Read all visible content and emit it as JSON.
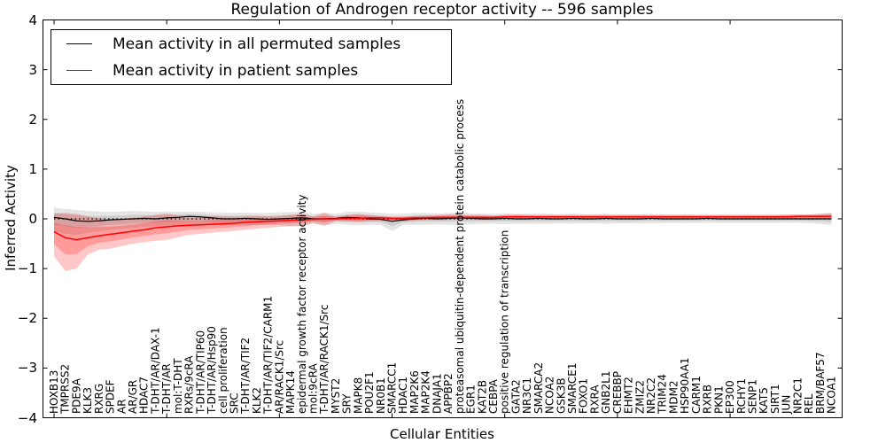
{
  "figure": {
    "title": "Regulation of Androgen receptor activity -- 596 samples",
    "xlabel": "Cellular Entities",
    "ylabel": "Inferred Activity"
  },
  "legend": {
    "entries": [
      {
        "label": "Mean activity in all permuted samples",
        "color": "#000000"
      },
      {
        "label": "Mean activity in patient samples",
        "color": "#ff0000"
      }
    ]
  },
  "chart_data": {
    "type": "line",
    "title": "Regulation of Androgen receptor activity -- 596 samples",
    "xlabel": "Cellular Entities",
    "ylabel": "Inferred Activity",
    "ylim": [
      -4,
      4
    ],
    "yticks": [
      4,
      3,
      2,
      1,
      0,
      -1,
      -2,
      -3,
      -4
    ],
    "xticks_major_every": 10,
    "grid": false,
    "zero_line": true,
    "legend_position": "upper left",
    "categories": [
      "HOXB13",
      "TMPRSS2",
      "PDE9A",
      "KLK3",
      "RXRG",
      "SPDEF",
      "AR",
      "AR/GR",
      "HDAC7",
      "T-DHT/AR/DAX-1",
      "T-DHT/AR",
      "mol:T-DHT",
      "RXRs/9cRA",
      "T-DHT/AR/TIP60",
      "T-DHT/AR/Hsp90",
      "cell proliferation",
      "SRC",
      "T-DHT/AR/TIF2",
      "KLK2",
      "T-DHT/AR/TIF2/CARM1",
      "AR/RACK1/Src",
      "MAPK14",
      "epidermal growth factor receptor activity",
      "mol:9cRA",
      "T-DHT/AR/RACK1/Src",
      "MYST2",
      "SRY",
      "MAPK8",
      "POU2F1",
      "NR0B1",
      "SMARCC1",
      "HDAC1",
      "MAP2K6",
      "MAP2K4",
      "DNAJA1",
      "APPBP2",
      "proteasomal ubiquitin-dependent protein catabolic process",
      "EGR1",
      "KAT2B",
      "CEBPA",
      "positive regulation of transcription",
      "GATA2",
      "NR3C1",
      "SMARCA2",
      "NCOA2",
      "GSK3B",
      "SMARCE1",
      "FOXO1",
      "RXRA",
      "GNB2L1",
      "CREBBP",
      "EHMT2",
      "ZMIZ2",
      "NR2C2",
      "TRIM24",
      "MDM2",
      "HSP90AA1",
      "CARM1",
      "RXRB",
      "PKN1",
      "EP300",
      "RCHY1",
      "SENP1",
      "KAT5",
      "SIRT1",
      "JUN",
      "NR2C1",
      "REL",
      "BRM/BAF57",
      "NCOA1"
    ],
    "series": [
      {
        "name": "Mean activity in all permuted samples",
        "color": "#000000",
        "band_fill": "rgba(0,0,0,0.10)",
        "values": [
          0.03,
          0.0,
          -0.04,
          -0.05,
          -0.04,
          -0.02,
          -0.01,
          0.0,
          0.01,
          0.0,
          0.02,
          0.03,
          0.05,
          0.04,
          0.02,
          0.0,
          0.0,
          0.01,
          0.0,
          -0.01,
          0.0,
          0.01,
          0.02,
          0.0,
          0.0,
          0.01,
          0.03,
          0.02,
          0.0,
          -0.01,
          -0.05,
          -0.02,
          0.0,
          0.01,
          0.0,
          0.01,
          0.02,
          0.01,
          0.0,
          0.0,
          0.01,
          0.0,
          0.0,
          0.01,
          0.0,
          0.0,
          0.01,
          0.0,
          0.0,
          0.01,
          0.0,
          0.0,
          0.0,
          0.01,
          0.0,
          0.0,
          0.0,
          0.0,
          0.01,
          0.0,
          0.0,
          0.0,
          0.0,
          0.0,
          0.0,
          0.0,
          0.0,
          0.0,
          0.0,
          0.0
        ],
        "band_upper": [
          0.22,
          0.2,
          0.18,
          0.16,
          0.15,
          0.14,
          0.15,
          0.16,
          0.15,
          0.14,
          0.15,
          0.14,
          0.15,
          0.14,
          0.13,
          0.13,
          0.12,
          0.13,
          0.12,
          0.12,
          0.13,
          0.14,
          0.14,
          0.1,
          0.13,
          0.1,
          0.14,
          0.15,
          0.13,
          0.12,
          0.1,
          0.1,
          0.12,
          0.12,
          0.11,
          0.12,
          0.13,
          0.11,
          0.1,
          0.1,
          0.11,
          0.1,
          0.1,
          0.1,
          0.1,
          0.09,
          0.1,
          0.09,
          0.09,
          0.1,
          0.09,
          0.09,
          0.09,
          0.09,
          0.09,
          0.08,
          0.09,
          0.08,
          0.08,
          0.08,
          0.08,
          0.08,
          0.08,
          0.08,
          0.08,
          0.08,
          0.08,
          0.09,
          0.1,
          0.13
        ],
        "band_lower": [
          -0.25,
          -0.3,
          -0.32,
          -0.28,
          -0.25,
          -0.22,
          -0.2,
          -0.18,
          -0.16,
          -0.15,
          -0.15,
          -0.14,
          -0.13,
          -0.14,
          -0.13,
          -0.13,
          -0.12,
          -0.13,
          -0.12,
          -0.12,
          -0.13,
          -0.14,
          -0.14,
          -0.1,
          -0.13,
          -0.1,
          -0.12,
          -0.13,
          -0.12,
          -0.12,
          -0.25,
          -0.12,
          -0.12,
          -0.12,
          -0.11,
          -0.12,
          -0.13,
          -0.11,
          -0.1,
          -0.1,
          -0.11,
          -0.1,
          -0.1,
          -0.1,
          -0.1,
          -0.09,
          -0.1,
          -0.09,
          -0.09,
          -0.1,
          -0.09,
          -0.09,
          -0.09,
          -0.09,
          -0.09,
          -0.08,
          -0.09,
          -0.08,
          -0.08,
          -0.08,
          -0.08,
          -0.08,
          -0.08,
          -0.08,
          -0.08,
          -0.08,
          -0.08,
          -0.09,
          -0.1,
          -0.13
        ]
      },
      {
        "name": "Mean activity in patient samples",
        "color": "#ff0000",
        "band_fill": "rgba(255,0,0,0.22)",
        "values": [
          -0.26,
          -0.38,
          -0.42,
          -0.38,
          -0.34,
          -0.31,
          -0.28,
          -0.25,
          -0.22,
          -0.18,
          -0.16,
          -0.14,
          -0.13,
          -0.12,
          -0.11,
          -0.1,
          -0.09,
          -0.07,
          -0.06,
          -0.05,
          -0.04,
          -0.03,
          -0.02,
          -0.01,
          0.0,
          0.0,
          0.01,
          0.01,
          0.02,
          0.02,
          0.01,
          0.01,
          0.02,
          0.02,
          0.03,
          0.03,
          0.03,
          0.03,
          0.03,
          0.03,
          0.04,
          0.04,
          0.04,
          0.04,
          0.04,
          0.04,
          0.04,
          0.04,
          0.04,
          0.04,
          0.04,
          0.04,
          0.04,
          0.04,
          0.04,
          0.04,
          0.04,
          0.04,
          0.04,
          0.04,
          0.04,
          0.04,
          0.04,
          0.04,
          0.04,
          0.04,
          0.05,
          0.05,
          0.05,
          0.05
        ],
        "band_upper": [
          0.1,
          0.12,
          0.1,
          0.05,
          0.01,
          -0.01,
          0.0,
          0.02,
          0.05,
          0.08,
          0.11,
          0.07,
          0.05,
          0.04,
          0.05,
          0.05,
          0.04,
          0.05,
          0.06,
          0.05,
          0.06,
          0.08,
          0.11,
          0.05,
          0.12,
          0.04,
          0.08,
          0.1,
          0.08,
          0.06,
          0.05,
          0.05,
          0.06,
          0.07,
          0.08,
          0.09,
          0.08,
          0.08,
          0.08,
          0.07,
          0.08,
          0.09,
          0.08,
          0.08,
          0.08,
          0.08,
          0.08,
          0.08,
          0.08,
          0.08,
          0.08,
          0.08,
          0.08,
          0.08,
          0.08,
          0.08,
          0.08,
          0.08,
          0.08,
          0.08,
          0.08,
          0.08,
          0.08,
          0.08,
          0.08,
          0.09,
          0.09,
          0.09,
          0.1,
          0.11
        ],
        "band_lower": [
          -0.75,
          -1.05,
          -1.0,
          -0.72,
          -0.62,
          -0.6,
          -0.55,
          -0.5,
          -0.47,
          -0.44,
          -0.42,
          -0.37,
          -0.32,
          -0.3,
          -0.28,
          -0.26,
          -0.24,
          -0.22,
          -0.2,
          -0.18,
          -0.16,
          -0.15,
          -0.14,
          -0.08,
          -0.14,
          -0.05,
          -0.06,
          -0.07,
          -0.05,
          -0.04,
          -0.04,
          -0.05,
          -0.03,
          -0.02,
          -0.02,
          -0.02,
          -0.01,
          -0.01,
          -0.02,
          -0.01,
          0.0,
          0.0,
          0.0,
          0.0,
          0.0,
          0.0,
          0.0,
          0.0,
          0.0,
          0.0,
          0.0,
          0.0,
          0.0,
          0.0,
          0.0,
          0.0,
          0.0,
          0.0,
          0.0,
          0.0,
          0.0,
          0.0,
          0.0,
          0.0,
          0.0,
          0.0,
          0.01,
          0.01,
          0.0,
          -0.01
        ]
      }
    ]
  }
}
